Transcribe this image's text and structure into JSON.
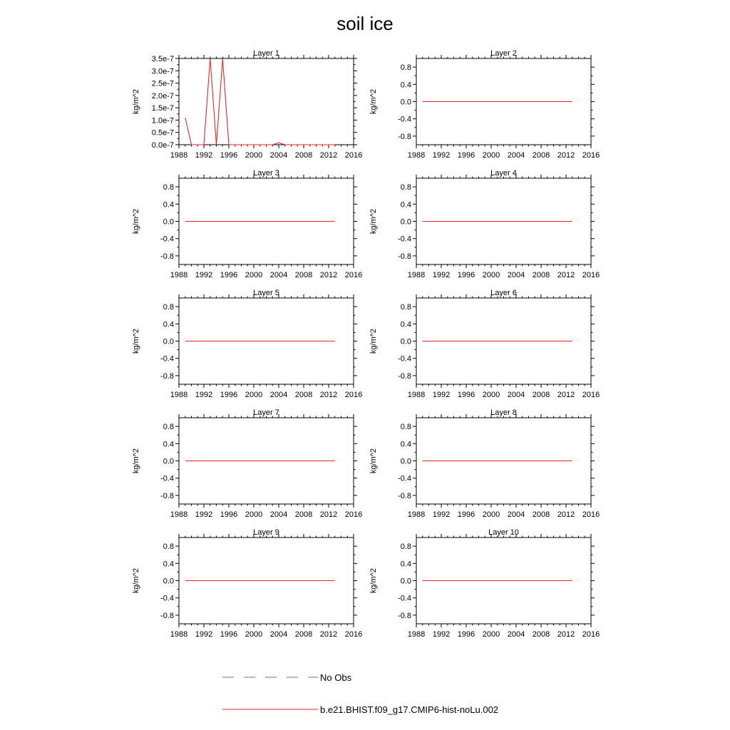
{
  "figure": {
    "title": "soil ice",
    "legend": [
      {
        "label": "No Obs",
        "color": "#6a6acd",
        "dash": "dashed"
      },
      {
        "label": "b.e21.BHIST.f09_g17.CMIP6-hist-noLu.002",
        "color": "#e8262a",
        "dash": "solid"
      }
    ]
  },
  "chart_data": [
    {
      "type": "line",
      "title": "Layer 1",
      "ylabel": "kg/m^2",
      "xlim": [
        1988,
        2016
      ],
      "x_ticks": [
        1988,
        1992,
        1996,
        2000,
        2004,
        2008,
        2012,
        2016
      ],
      "ylim": [
        0,
        3.5e-07
      ],
      "y_ticks": [
        0,
        5e-08,
        1e-07,
        1.5e-07,
        2e-07,
        2.5e-07,
        3e-07,
        3.5e-07
      ],
      "y_tick_labels": [
        "0.0e-7",
        "0.5e-7",
        "1.0e-7",
        "1.5e-7",
        "2.0e-7",
        "2.5e-7",
        "3.0e-7",
        "3.5e-7"
      ],
      "grid": false,
      "series": [
        {
          "name": "b.e21.BHIST.f09_g17.CMIP6-hist-noLu.002",
          "color": "#e8262a",
          "x": [
            1989,
            1990,
            1991,
            1992,
            1993,
            1994,
            1995,
            1996,
            1997,
            1998,
            1999,
            2000,
            2001,
            2002,
            2003,
            2004,
            2005,
            2006,
            2007,
            2008,
            2009,
            2010,
            2011,
            2012,
            2013
          ],
          "y": [
            1.1e-07,
            0,
            0,
            0,
            3.5e-07,
            0,
            3.5e-07,
            0,
            0,
            0,
            0,
            0,
            0,
            0,
            0,
            8e-09,
            0,
            0,
            0,
            0,
            0,
            0,
            0,
            0,
            0
          ]
        }
      ]
    },
    {
      "type": "line",
      "title": "Layer 2",
      "ylabel": "kg/m^2",
      "xlim": [
        1988,
        2016
      ],
      "x_ticks": [
        1988,
        1992,
        1996,
        2000,
        2004,
        2008,
        2012,
        2016
      ],
      "ylim": [
        -1,
        1
      ],
      "y_ticks": [
        -0.8,
        -0.4,
        0,
        0.4,
        0.8
      ],
      "y_tick_labels": [
        "-0.8",
        "-0.4",
        "0.0",
        "0.4",
        "0.8"
      ],
      "grid": false,
      "series": [
        {
          "name": "b.e21.BHIST.f09_g17.CMIP6-hist-noLu.002",
          "color": "#e8262a",
          "x": [
            1989,
            2013
          ],
          "y": [
            0,
            0
          ]
        }
      ]
    },
    {
      "type": "line",
      "title": "Layer 3",
      "ylabel": "kg/m^2",
      "xlim": [
        1988,
        2016
      ],
      "x_ticks": [
        1988,
        1992,
        1996,
        2000,
        2004,
        2008,
        2012,
        2016
      ],
      "ylim": [
        -1,
        1
      ],
      "y_ticks": [
        -0.8,
        -0.4,
        0,
        0.4,
        0.8
      ],
      "y_tick_labels": [
        "-0.8",
        "-0.4",
        "0.0",
        "0.4",
        "0.8"
      ],
      "grid": false,
      "series": [
        {
          "name": "b.e21.BHIST.f09_g17.CMIP6-hist-noLu.002",
          "color": "#e8262a",
          "x": [
            1989,
            2013
          ],
          "y": [
            0,
            0
          ]
        }
      ]
    },
    {
      "type": "line",
      "title": "Layer 4",
      "ylabel": "kg/m^2",
      "xlim": [
        1988,
        2016
      ],
      "x_ticks": [
        1988,
        1992,
        1996,
        2000,
        2004,
        2008,
        2012,
        2016
      ],
      "ylim": [
        -1,
        1
      ],
      "y_ticks": [
        -0.8,
        -0.4,
        0,
        0.4,
        0.8
      ],
      "y_tick_labels": [
        "-0.8",
        "-0.4",
        "0.0",
        "0.4",
        "0.8"
      ],
      "grid": false,
      "series": [
        {
          "name": "b.e21.BHIST.f09_g17.CMIP6-hist-noLu.002",
          "color": "#e8262a",
          "x": [
            1989,
            2013
          ],
          "y": [
            0,
            0
          ]
        }
      ]
    },
    {
      "type": "line",
      "title": "Layer 5",
      "ylabel": "kg/m^2",
      "xlim": [
        1988,
        2016
      ],
      "x_ticks": [
        1988,
        1992,
        1996,
        2000,
        2004,
        2008,
        2012,
        2016
      ],
      "ylim": [
        -1,
        1
      ],
      "y_ticks": [
        -0.8,
        -0.4,
        0,
        0.4,
        0.8
      ],
      "y_tick_labels": [
        "-0.8",
        "-0.4",
        "0.0",
        "0.4",
        "0.8"
      ],
      "grid": false,
      "series": [
        {
          "name": "b.e21.BHIST.f09_g17.CMIP6-hist-noLu.002",
          "color": "#e8262a",
          "x": [
            1989,
            2013
          ],
          "y": [
            0,
            0
          ]
        }
      ]
    },
    {
      "type": "line",
      "title": "Layer 6",
      "ylabel": "kg/m^2",
      "xlim": [
        1988,
        2016
      ],
      "x_ticks": [
        1988,
        1992,
        1996,
        2000,
        2004,
        2008,
        2012,
        2016
      ],
      "ylim": [
        -1,
        1
      ],
      "y_ticks": [
        -0.8,
        -0.4,
        0,
        0.4,
        0.8
      ],
      "y_tick_labels": [
        "-0.8",
        "-0.4",
        "0.0",
        "0.4",
        "0.8"
      ],
      "grid": false,
      "series": [
        {
          "name": "b.e21.BHIST.f09_g17.CMIP6-hist-noLu.002",
          "color": "#e8262a",
          "x": [
            1989,
            2013
          ],
          "y": [
            0,
            0
          ]
        }
      ]
    },
    {
      "type": "line",
      "title": "Layer 7",
      "ylabel": "kg/m^2",
      "xlim": [
        1988,
        2016
      ],
      "x_ticks": [
        1988,
        1992,
        1996,
        2000,
        2004,
        2008,
        2012,
        2016
      ],
      "ylim": [
        -1,
        1
      ],
      "y_ticks": [
        -0.8,
        -0.4,
        0,
        0.4,
        0.8
      ],
      "y_tick_labels": [
        "-0.8",
        "-0.4",
        "0.0",
        "0.4",
        "0.8"
      ],
      "grid": false,
      "series": [
        {
          "name": "b.e21.BHIST.f09_g17.CMIP6-hist-noLu.002",
          "color": "#e8262a",
          "x": [
            1989,
            2013
          ],
          "y": [
            0,
            0
          ]
        }
      ]
    },
    {
      "type": "line",
      "title": "Layer 8",
      "ylabel": "kg/m^2",
      "xlim": [
        1988,
        2016
      ],
      "x_ticks": [
        1988,
        1992,
        1996,
        2000,
        2004,
        2008,
        2012,
        2016
      ],
      "ylim": [
        -1,
        1
      ],
      "y_ticks": [
        -0.8,
        -0.4,
        0,
        0.4,
        0.8
      ],
      "y_tick_labels": [
        "-0.8",
        "-0.4",
        "0.0",
        "0.4",
        "0.8"
      ],
      "grid": false,
      "series": [
        {
          "name": "b.e21.BHIST.f09_g17.CMIP6-hist-noLu.002",
          "color": "#e8262a",
          "x": [
            1989,
            2013
          ],
          "y": [
            0,
            0
          ]
        }
      ]
    },
    {
      "type": "line",
      "title": "Layer 9",
      "ylabel": "kg/m^2",
      "xlim": [
        1988,
        2016
      ],
      "x_ticks": [
        1988,
        1992,
        1996,
        2000,
        2004,
        2008,
        2012,
        2016
      ],
      "ylim": [
        -1,
        1
      ],
      "y_ticks": [
        -0.8,
        -0.4,
        0,
        0.4,
        0.8
      ],
      "y_tick_labels": [
        "-0.8",
        "-0.4",
        "0.0",
        "0.4",
        "0.8"
      ],
      "grid": false,
      "series": [
        {
          "name": "b.e21.BHIST.f09_g17.CMIP6-hist-noLu.002",
          "color": "#e8262a",
          "x": [
            1989,
            2013
          ],
          "y": [
            0,
            0
          ]
        }
      ]
    },
    {
      "type": "line",
      "title": "Layer 10",
      "ylabel": "kg/m^2",
      "xlim": [
        1988,
        2016
      ],
      "x_ticks": [
        1988,
        1992,
        1996,
        2000,
        2004,
        2008,
        2012,
        2016
      ],
      "ylim": [
        -1,
        1
      ],
      "y_ticks": [
        -0.8,
        -0.4,
        0,
        0.4,
        0.8
      ],
      "y_tick_labels": [
        "-0.8",
        "-0.4",
        "0.0",
        "0.4",
        "0.8"
      ],
      "grid": false,
      "series": [
        {
          "name": "b.e21.BHIST.f09_g17.CMIP6-hist-noLu.002",
          "color": "#e8262a",
          "x": [
            1989,
            2013
          ],
          "y": [
            0,
            0
          ]
        }
      ]
    }
  ]
}
